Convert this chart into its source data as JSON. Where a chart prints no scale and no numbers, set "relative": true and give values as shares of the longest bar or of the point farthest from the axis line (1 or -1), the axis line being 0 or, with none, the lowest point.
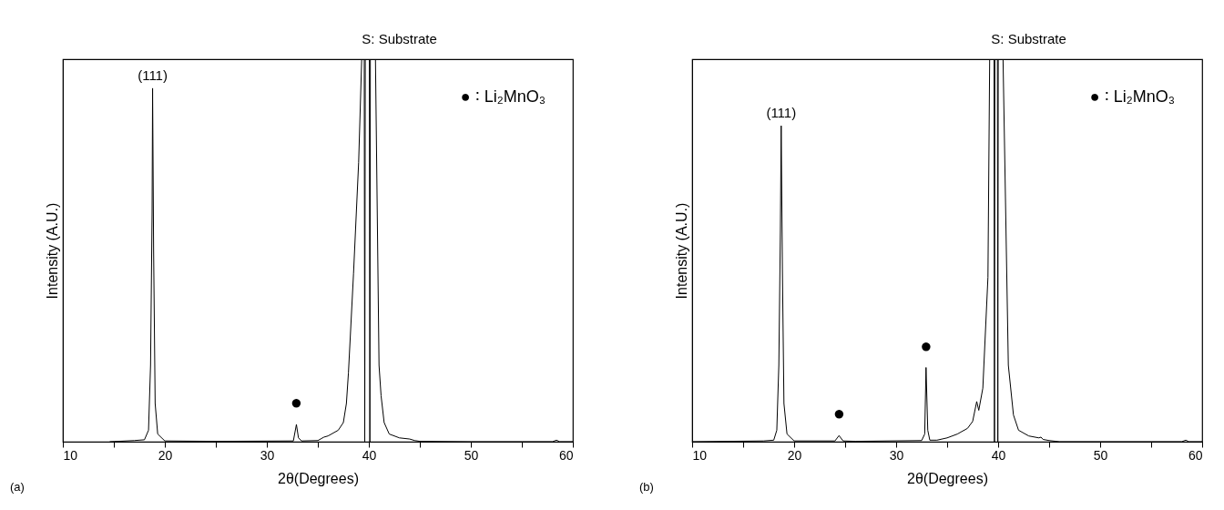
{
  "chart_data": [
    {
      "type": "line",
      "xlabel": "2θ(Degrees)",
      "ylabel": "Intensity (A.U.)",
      "relative": true,
      "grid": false,
      "marker": "none",
      "line_style": "solid",
      "xlim": [
        10,
        60
      ],
      "xticks": [
        10,
        {
          "value": 15,
          "label": null
        },
        20,
        {
          "value": 25,
          "label": null
        },
        30,
        {
          "value": 35,
          "label": null
        },
        40,
        {
          "value": 45,
          "label": null
        },
        50,
        {
          "value": 55,
          "label": null
        },
        60
      ],
      "x": [
        14.6,
        17,
        18,
        18.4,
        18.6,
        18.75,
        18.8,
        18.9,
        19.05,
        19.3,
        20,
        25,
        32.6,
        32.9,
        33.1,
        33.4,
        35,
        35.6,
        36,
        37,
        37.5,
        37.8,
        38,
        38.5,
        39,
        39.3,
        39.55,
        39.6,
        39.65,
        40.05,
        40.1,
        40.15,
        40.65,
        41,
        41.2,
        41.5,
        42,
        43,
        44,
        44.5,
        45,
        50,
        58,
        58.4,
        58.7,
        60
      ],
      "series": [
        {
          "color": "#000000",
          "values": [
            0,
            0.003,
            0.005,
            0.03,
            0.2,
            0.6,
            0.924,
            0.5,
            0.1,
            0.02,
            0.002,
            0.001,
            0.002,
            0.045,
            0.01,
            0.002,
            0.003,
            0.012,
            0.015,
            0.03,
            0.05,
            0.1,
            0.18,
            0.44,
            0.73,
            1,
            1,
            0,
            1,
            1,
            0,
            1,
            1,
            0.2,
            0.12,
            0.05,
            0.02,
            0.01,
            0.007,
            0.003,
            0.001,
            0,
            0,
            0.004,
            0,
            0
          ]
        }
      ],
      "annotations": [
        "S: Substrate",
        "● ∶ Li₂MnO₃",
        "(a)",
        {
          "text": "(111)",
          "x": 18.8,
          "y": 0.924
        },
        {
          "text": "●",
          "x": 32.9,
          "y": 0.045
        }
      ]
    },
    {
      "type": "line",
      "xlabel": "2θ(Degrees)",
      "ylabel": "Intensity (A.U.)",
      "relative": true,
      "grid": false,
      "marker": "none",
      "line_style": "solid",
      "xlim": [
        10,
        60
      ],
      "xticks": [
        10,
        {
          "value": 15,
          "label": null
        },
        20,
        {
          "value": 25,
          "label": null
        },
        30,
        {
          "value": 35,
          "label": null
        },
        40,
        {
          "value": 45,
          "label": null
        },
        50,
        {
          "value": 55,
          "label": null
        },
        60
      ],
      "x": [
        10,
        17,
        18,
        18.3,
        18.5,
        18.65,
        18.73,
        18.85,
        19,
        19.3,
        20,
        24,
        24.4,
        24.8,
        26,
        32.5,
        32.8,
        32.93,
        33.1,
        33.3,
        34,
        35,
        36,
        37,
        37.5,
        37.9,
        38.1,
        38.5,
        39,
        39.17,
        39.6,
        39.64,
        39.68,
        39.93,
        39.97,
        40.01,
        40.48,
        41,
        41.5,
        42,
        43,
        44,
        44.2,
        44.4,
        45,
        46,
        58,
        58.4,
        58.7,
        60
      ],
      "series": [
        {
          "color": "#000000",
          "values": [
            0,
            0.002,
            0.004,
            0.03,
            0.2,
            0.55,
            0.826,
            0.45,
            0.1,
            0.02,
            0.002,
            0.002,
            0.016,
            0.002,
            0.001,
            0.003,
            0.02,
            0.194,
            0.03,
            0.004,
            0.004,
            0.01,
            0.02,
            0.035,
            0.053,
            0.105,
            0.082,
            0.14,
            0.43,
            1,
            1,
            0,
            1,
            1,
            0,
            1,
            1,
            0.2,
            0.07,
            0.03,
            0.015,
            0.01,
            0.012,
            0.006,
            0.003,
            0,
            0,
            0.004,
            0,
            0
          ]
        }
      ],
      "annotations": [
        "S: Substrate",
        "● ∶ Li₂MnO₃",
        "(b)",
        {
          "text": "(111)",
          "x": 18.73,
          "y": 0.826
        },
        {
          "text": "●",
          "x": 24.4,
          "y": 0.016
        },
        {
          "text": "●",
          "x": 32.93,
          "y": 0.194
        }
      ]
    }
  ]
}
